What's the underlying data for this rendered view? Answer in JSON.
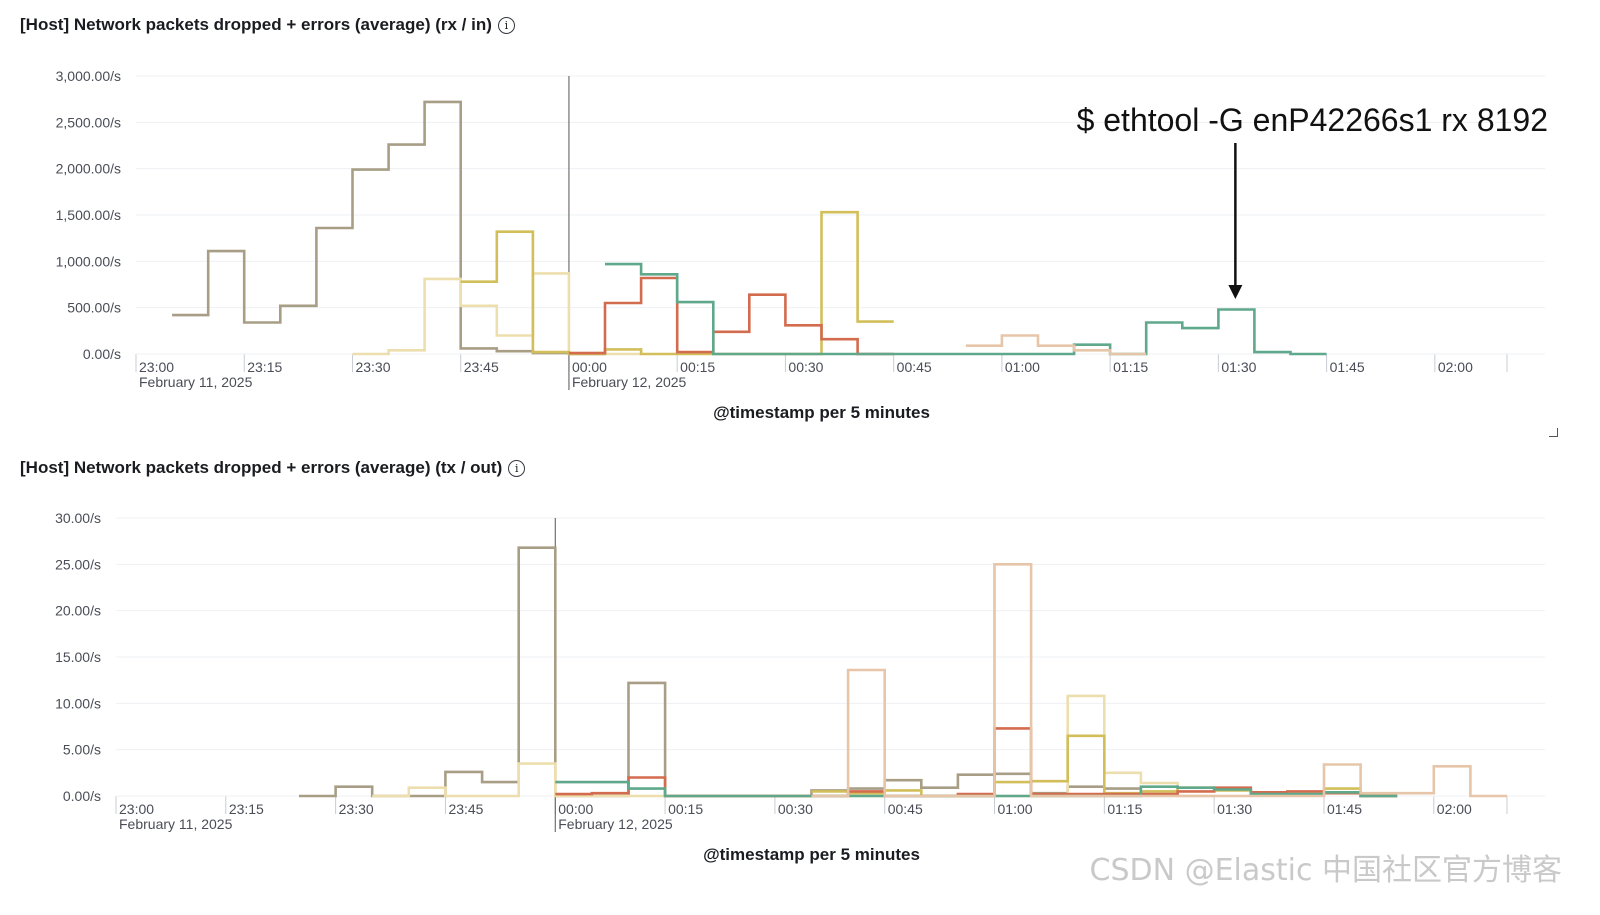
{
  "watermark": "CSDN @Elastic 中国社区官方博客",
  "icons": {
    "info": "info-icon",
    "resize": "resize-handle-icon"
  },
  "chart_data": [
    {
      "type": "line",
      "step": true,
      "title": "[Host] Network packets dropped + errors (average) (rx / in)",
      "xlabel": "@timestamp per 5 minutes",
      "ylabel": "",
      "ylim": [
        0,
        3000
      ],
      "y_ticks": [
        "3,000.00/s",
        "2,500.00/s",
        "2,000.00/s",
        "1,500.00/s",
        "1,000.00/s",
        "500.00/s",
        "0.00/s"
      ],
      "y_tick_values": [
        3000,
        2500,
        2000,
        1500,
        1000,
        500,
        0
      ],
      "x_ticks": [
        "23:00",
        "23:15",
        "23:30",
        "23:45",
        "00:00",
        "00:15",
        "00:30",
        "00:45",
        "01:00",
        "01:15",
        "01:30",
        "01:45",
        "02:00"
      ],
      "x_tick_minutes": [
        0,
        15,
        30,
        45,
        60,
        75,
        90,
        105,
        120,
        135,
        150,
        165,
        180
      ],
      "x_date_labels": [
        {
          "at": "23:00",
          "text": "February 11, 2025"
        },
        {
          "at": "00:00",
          "text": "February 12, 2025"
        }
      ],
      "x_range_minutes": [
        0,
        190
      ],
      "annotation": {
        "text": "$ ethtool -G enP42266s1 rx 8192",
        "arrow_at": "01:30"
      },
      "grid": true,
      "colors": [
        "#a89e86",
        "#eddfad",
        "#d2bf5a",
        "#d36c4e",
        "#5fa88b",
        "#e6c5a8"
      ],
      "series": [
        {
          "x": [
            "23:05",
            "23:10",
            "23:15",
            "23:20",
            "23:25",
            "23:30",
            "23:35",
            "23:40",
            "23:45",
            "23:50",
            "23:55",
            "00:00"
          ],
          "values": [
            420,
            1110,
            340,
            520,
            1360,
            1990,
            2260,
            2720,
            60,
            30,
            10,
            0
          ]
        },
        {
          "x": [
            "23:30",
            "23:35",
            "23:40",
            "23:45",
            "23:50",
            "23:55",
            "00:00",
            "00:05"
          ],
          "values": [
            0,
            40,
            810,
            520,
            200,
            870,
            10,
            0
          ]
        },
        {
          "x": [
            "23:45",
            "23:50",
            "23:55",
            "00:00",
            "00:05",
            "00:10",
            "00:15",
            "00:20",
            "00:25",
            "00:30",
            "00:35",
            "00:40"
          ],
          "values": [
            780,
            1320,
            20,
            0,
            50,
            0,
            0,
            0,
            0,
            0,
            1530,
            350
          ]
        },
        {
          "x": [
            "00:00",
            "00:05",
            "00:10",
            "00:15",
            "00:20",
            "00:25",
            "00:30",
            "00:35",
            "00:40"
          ],
          "values": [
            10,
            550,
            820,
            20,
            240,
            640,
            310,
            160,
            0
          ]
        },
        {
          "x": [
            "00:05",
            "00:10",
            "00:15",
            "00:20",
            "01:00",
            "01:05",
            "01:10",
            "01:15",
            "01:20",
            "01:25",
            "01:30",
            "01:35",
            "01:40"
          ],
          "values": [
            970,
            860,
            560,
            0,
            0,
            0,
            100,
            0,
            340,
            280,
            480,
            20,
            0
          ]
        },
        {
          "x": [
            "00:55",
            "01:00",
            "01:05",
            "01:10",
            "01:15"
          ],
          "values": [
            90,
            200,
            90,
            40,
            0
          ]
        }
      ]
    },
    {
      "type": "line",
      "step": true,
      "title": "[Host] Network packets dropped + errors (average) (tx / out)",
      "xlabel": "@timestamp per 5 minutes",
      "ylabel": "",
      "ylim": [
        0,
        30
      ],
      "y_ticks": [
        "30.00/s",
        "25.00/s",
        "20.00/s",
        "15.00/s",
        "10.00/s",
        "5.00/s",
        "0.00/s"
      ],
      "y_tick_values": [
        30,
        25,
        20,
        15,
        10,
        5,
        0
      ],
      "x_ticks": [
        "23:00",
        "23:15",
        "23:30",
        "23:45",
        "00:00",
        "00:15",
        "00:30",
        "00:45",
        "01:00",
        "01:15",
        "01:30",
        "01:45",
        "02:00"
      ],
      "x_tick_minutes": [
        0,
        15,
        30,
        45,
        60,
        75,
        90,
        105,
        120,
        135,
        150,
        165,
        180
      ],
      "x_date_labels": [
        {
          "at": "23:00",
          "text": "February 11, 2025"
        },
        {
          "at": "00:00",
          "text": "February 12, 2025"
        }
      ],
      "x_range_minutes": [
        0,
        190
      ],
      "grid": true,
      "colors": [
        "#a89e86",
        "#eddfad",
        "#d2bf5a",
        "#d36c4e",
        "#5fa88b",
        "#e6c5a8"
      ],
      "series": [
        {
          "x": [
            "23:25",
            "23:30",
            "23:35",
            "23:40",
            "23:45",
            "23:50",
            "23:55",
            "00:00",
            "00:05",
            "00:10",
            "00:15",
            "00:20",
            "00:25",
            "00:30",
            "00:35",
            "00:40",
            "00:45",
            "00:50",
            "00:55",
            "01:00",
            "01:05",
            "01:10",
            "01:15"
          ],
          "values": [
            0,
            1,
            0,
            0,
            2.6,
            1.5,
            26.8,
            0,
            0,
            12.2,
            0,
            0,
            0,
            0,
            0.6,
            0.8,
            1.7,
            0.9,
            2.3,
            2.4,
            0.3,
            1.0,
            0.8
          ]
        },
        {
          "x": [
            "23:35",
            "23:40",
            "23:45",
            "23:55",
            "00:00",
            "00:05",
            "01:10",
            "01:15",
            "01:20",
            "01:25"
          ],
          "values": [
            0,
            0.9,
            0,
            3.5,
            0,
            0,
            10.8,
            2.5,
            1.4,
            0
          ]
        },
        {
          "x": [
            "00:35",
            "00:40",
            "00:45",
            "00:50",
            "00:55",
            "01:00",
            "01:05",
            "01:10",
            "01:15",
            "01:20",
            "01:25",
            "01:30",
            "01:35",
            "01:40",
            "01:45",
            "01:50"
          ],
          "values": [
            0.5,
            0.3,
            0.6,
            0,
            0,
            1.5,
            1.6,
            6.5,
            0.3,
            0.5,
            0.9,
            0.6,
            0.3,
            0.2,
            0.8,
            0
          ]
        },
        {
          "x": [
            "00:00",
            "00:05",
            "00:10",
            "00:15",
            "00:40",
            "00:45",
            "00:55",
            "01:00",
            "01:05",
            "01:25",
            "01:30",
            "01:35",
            "01:40",
            "01:45",
            "01:50"
          ],
          "values": [
            0.2,
            0.3,
            2.0,
            0,
            0.5,
            0,
            0.2,
            7.3,
            0.2,
            0.5,
            0.9,
            0.4,
            0.5,
            0.3,
            0
          ]
        },
        {
          "x": [
            "00:00",
            "00:05",
            "00:10",
            "00:15",
            "00:20",
            "01:20",
            "01:25",
            "01:30",
            "01:35",
            "01:45",
            "01:50"
          ],
          "values": [
            1.5,
            1.5,
            0.8,
            0,
            0,
            1.0,
            0.9,
            0.7,
            0.2,
            0.4,
            0
          ]
        },
        {
          "x": [
            "00:35",
            "00:40",
            "00:45",
            "00:55",
            "01:00",
            "01:05",
            "01:40",
            "01:45",
            "01:50",
            "02:00",
            "02:05"
          ],
          "values": [
            0,
            13.6,
            0,
            0,
            25.0,
            0,
            0,
            3.4,
            0.3,
            3.2,
            0
          ]
        }
      ]
    }
  ]
}
